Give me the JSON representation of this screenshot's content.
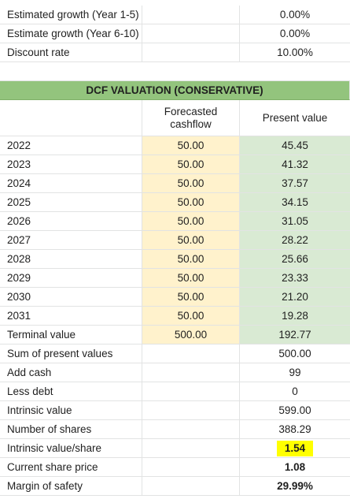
{
  "assumptions": [
    {
      "label": "Estimated growth (Year 1-5)",
      "value": "0.00%"
    },
    {
      "label": "Estimate growth (Year 6-10)",
      "value": "0.00%"
    },
    {
      "label": "Discount rate",
      "value": "10.00%"
    }
  ],
  "section_title": "DCF VALUATION (CONSERVATIVE)",
  "columns": {
    "forecasted_cashflow": "Forecasted cashflow",
    "present_value": "Present value"
  },
  "years": [
    {
      "label": "2022",
      "cashflow": "50.00",
      "pv": "45.45"
    },
    {
      "label": "2023",
      "cashflow": "50.00",
      "pv": "41.32"
    },
    {
      "label": "2024",
      "cashflow": "50.00",
      "pv": "37.57"
    },
    {
      "label": "2025",
      "cashflow": "50.00",
      "pv": "34.15"
    },
    {
      "label": "2026",
      "cashflow": "50.00",
      "pv": "31.05"
    },
    {
      "label": "2027",
      "cashflow": "50.00",
      "pv": "28.22"
    },
    {
      "label": "2028",
      "cashflow": "50.00",
      "pv": "25.66"
    },
    {
      "label": "2029",
      "cashflow": "50.00",
      "pv": "23.33"
    },
    {
      "label": "2030",
      "cashflow": "50.00",
      "pv": "21.20"
    },
    {
      "label": "2031",
      "cashflow": "50.00",
      "pv": "19.28"
    },
    {
      "label": "Terminal value",
      "cashflow": "500.00",
      "pv": "192.77"
    }
  ],
  "summary": [
    {
      "label": "Sum of present values",
      "value": "500.00"
    },
    {
      "label": "Add cash",
      "value": "99"
    },
    {
      "label": "Less debt",
      "value": "0"
    },
    {
      "label": "Intrinsic value",
      "value": "599.00"
    },
    {
      "label": "Number of shares",
      "value": "388.29"
    },
    {
      "label": "Intrinsic value/share",
      "value": "1.54"
    },
    {
      "label": "Current share price",
      "value": "1.08"
    },
    {
      "label": "Margin of safety",
      "value": "29.99%"
    }
  ],
  "colors": {
    "header_green": "#93c47d",
    "cashflow_yellow": "#fff2cc",
    "pv_green": "#d9ead3",
    "highlight_yellow": "#ffff00",
    "gridline": "#e2e3e3"
  }
}
